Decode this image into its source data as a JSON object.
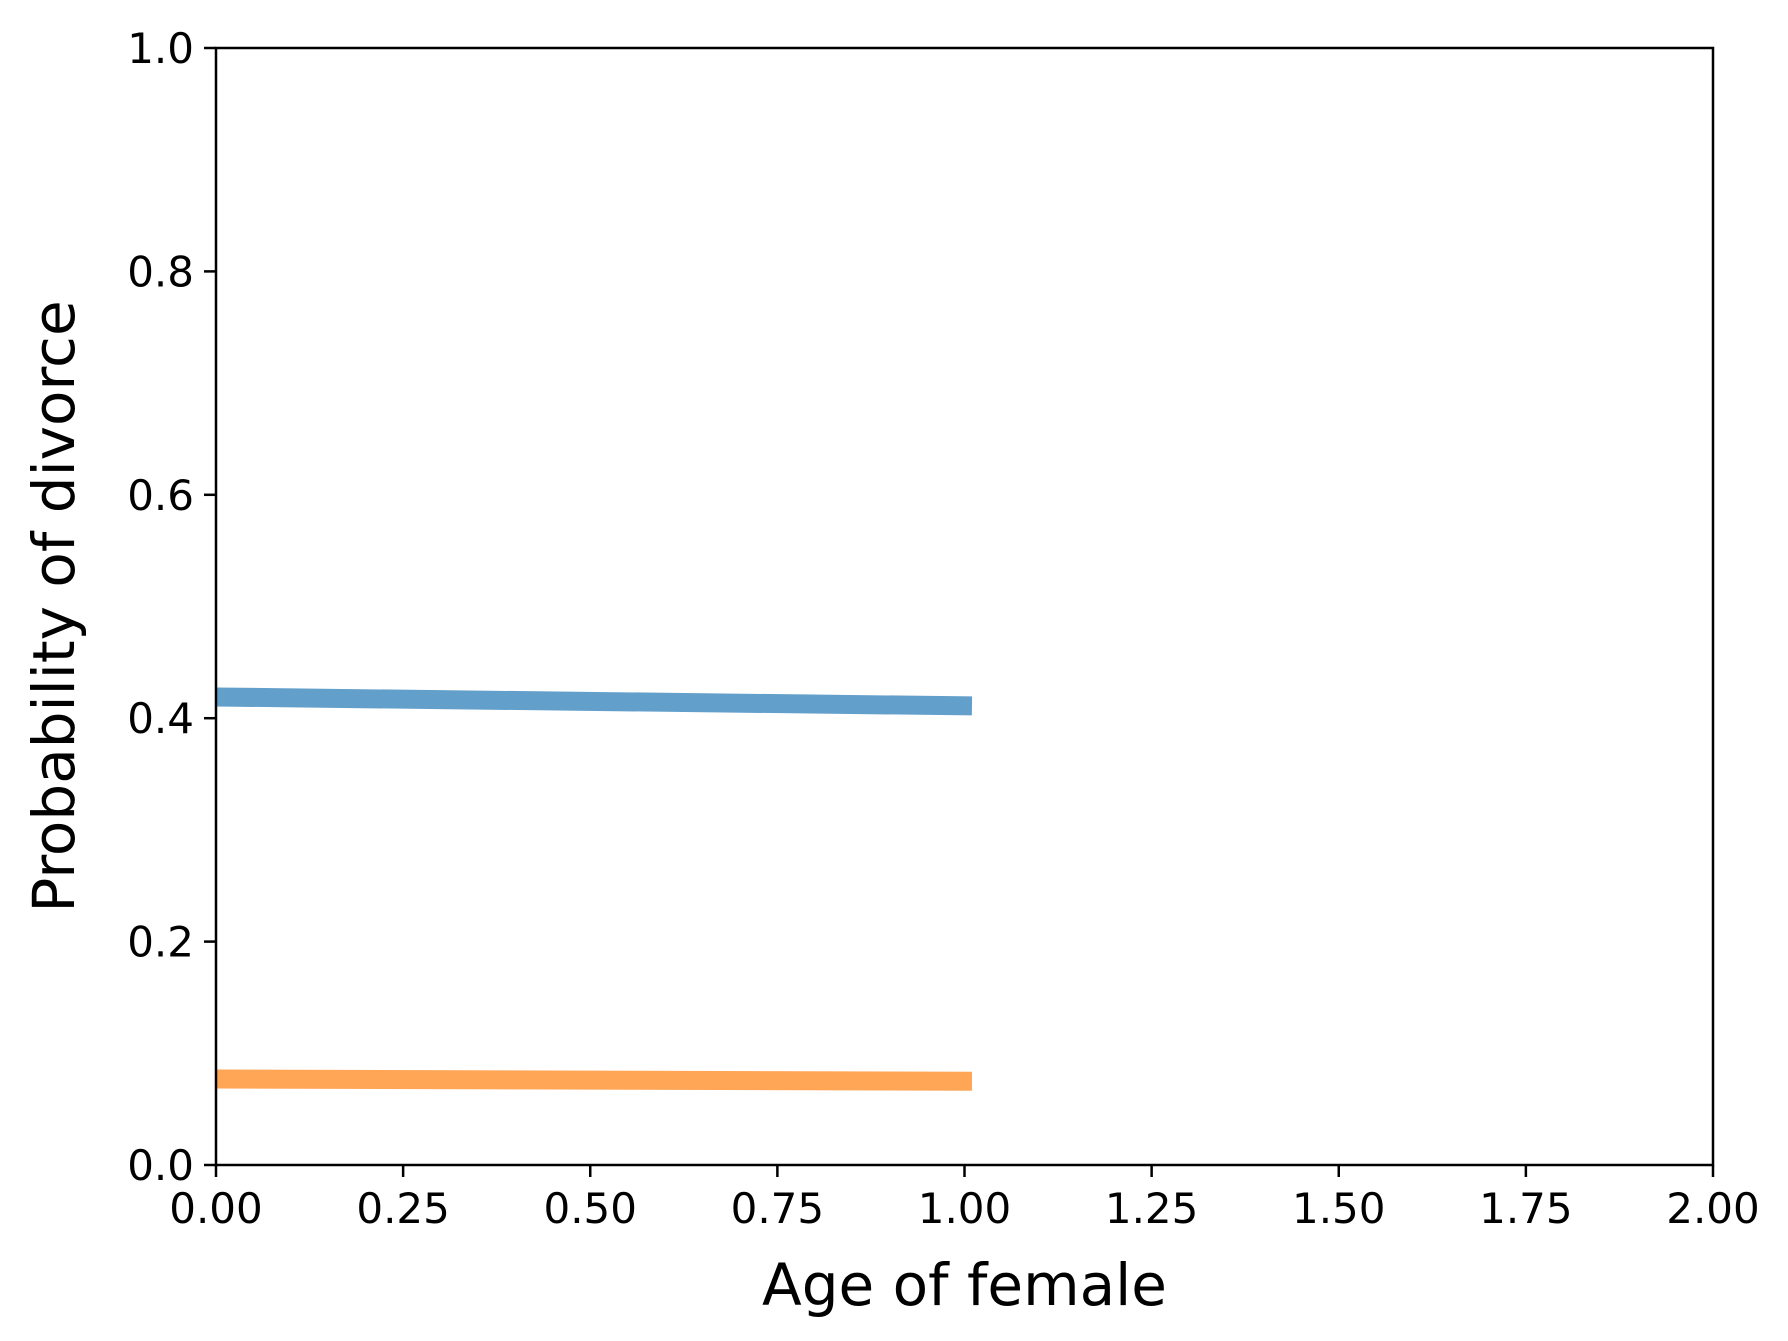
{
  "chart_data": {
    "type": "line",
    "title": "",
    "xlabel": "Age of female",
    "ylabel": "Probability of divorce",
    "xlim": [
      0.0,
      2.0
    ],
    "ylim": [
      0.0,
      1.0
    ],
    "grid": false,
    "x_ticks": [
      0.0,
      0.25,
      0.5,
      0.75,
      1.0,
      1.25,
      1.5,
      1.75,
      2.0
    ],
    "x_tick_labels": [
      "0.00",
      "0.25",
      "0.50",
      "0.75",
      "1.00",
      "1.25",
      "1.50",
      "1.75",
      "2.00"
    ],
    "y_ticks": [
      0.0,
      0.2,
      0.4,
      0.6,
      0.8,
      1.0
    ],
    "y_tick_labels": [
      "0.0",
      "0.2",
      "0.4",
      "0.6",
      "0.8",
      "1.0"
    ],
    "series": [
      {
        "color": "#629fca",
        "x": [
          0.0,
          1.01
        ],
        "y": [
          0.419,
          0.411
        ]
      },
      {
        "color": "#ffa556",
        "x": [
          0.0,
          1.01
        ],
        "y": [
          0.077,
          0.075
        ]
      }
    ]
  }
}
